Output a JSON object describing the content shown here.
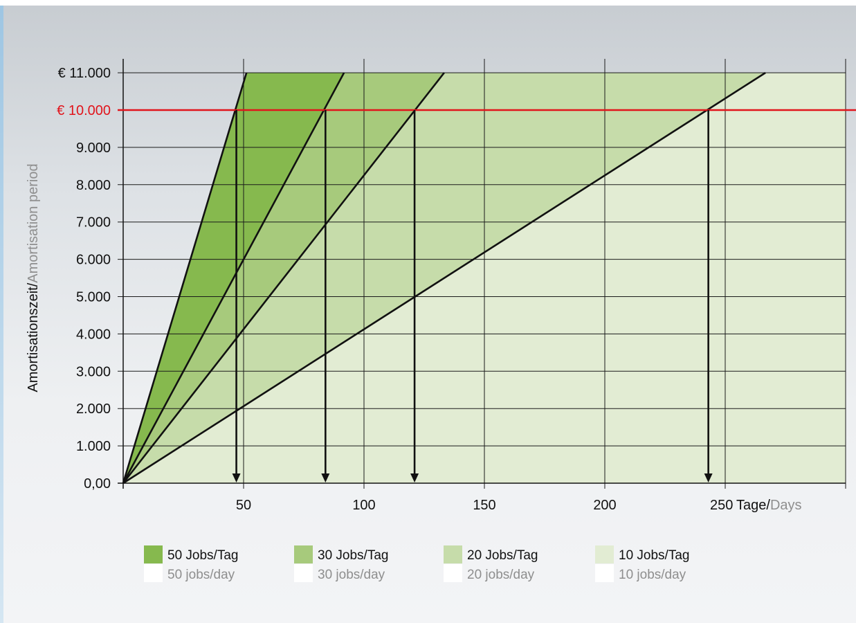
{
  "chart_data": {
    "type": "area",
    "x_ticks": [
      "50",
      "100",
      "150",
      "200",
      "250"
    ],
    "x_unit": {
      "primary": "Tage/",
      "secondary": "Days"
    },
    "xlim": [
      0,
      300
    ],
    "y_ticks": [
      "0,00",
      "1.000",
      "2.000",
      "3.000",
      "4.000",
      "5.000",
      "6.000",
      "7.000",
      "8.000",
      "9.000",
      "€ 10.000",
      "€ 11.000"
    ],
    "ylim": [
      0,
      11000
    ],
    "ylabel": {
      "primary": "Amortisationszeit/",
      "secondary": "Amortisation period"
    },
    "threshold": {
      "value": 10000,
      "color": "#e1141b"
    },
    "series": [
      {
        "name": "50 Jobs/Tag",
        "name_en": "50 jobs/day",
        "color": "#86b94e",
        "x": [
          0,
          51.2
        ],
        "y": [
          0,
          11000
        ],
        "break_even_day": 47
      },
      {
        "name": "30 Jobs/Tag",
        "name_en": "30 jobs/day",
        "color": "#a7ca7c",
        "x": [
          0,
          91.7
        ],
        "y": [
          0,
          11000
        ],
        "break_even_day": 84
      },
      {
        "name": "20 Jobs/Tag",
        "name_en": "20 jobs/day",
        "color": "#c6dcaa",
        "x": [
          0,
          133.3
        ],
        "y": [
          0,
          11000
        ],
        "break_even_day": 121
      },
      {
        "name": "10 Jobs/Tag",
        "name_en": "10 jobs/day",
        "color": "#e2ecd3",
        "x": [
          0,
          266.7
        ],
        "y": [
          0,
          11000
        ],
        "break_even_day": 243
      }
    ],
    "legend_position": "bottom"
  }
}
